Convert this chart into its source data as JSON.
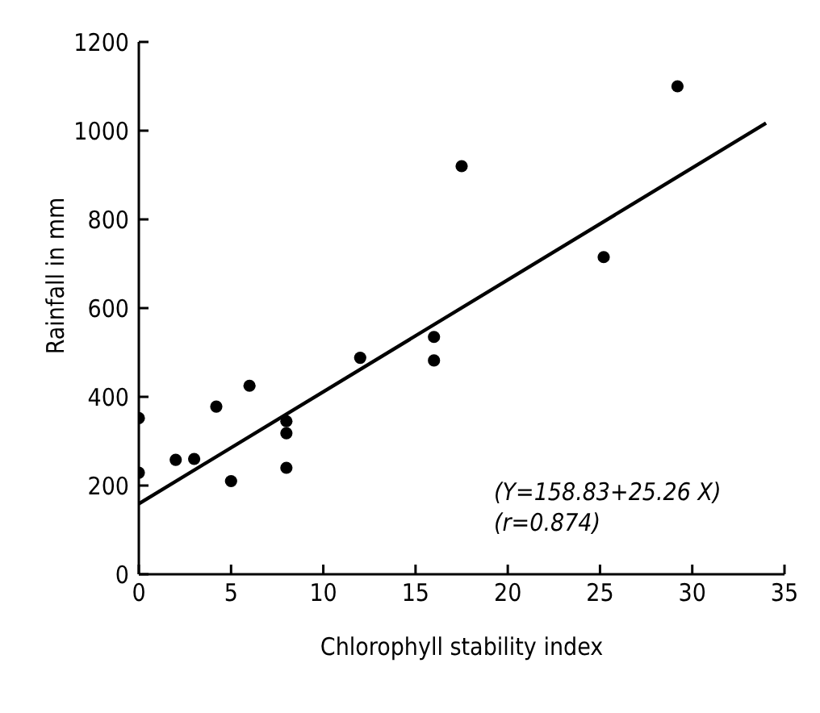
{
  "chart_data": {
    "type": "scatter",
    "xlabel": "Chlorophyll stability index",
    "ylabel": "Rainfall in mm",
    "xlim": [
      0,
      35
    ],
    "xticks": [
      0,
      5,
      10,
      15,
      20,
      25,
      30,
      35
    ],
    "ylim": [
      0,
      1200
    ],
    "yticks": [
      0,
      200,
      400,
      600,
      800,
      1000,
      1200
    ],
    "grid": false,
    "legend": false,
    "marker": "circle",
    "annotations": [
      "(Y=158.83+25.26 X)",
      "(r=0.874)"
    ],
    "series": [
      {
        "color": "#000000",
        "x": [
          0,
          0,
          2,
          3,
          4.2,
          5,
          6,
          8,
          8,
          8,
          12,
          16,
          16,
          17.5,
          25.2,
          29.2
        ],
        "values": [
          352,
          229,
          258,
          260,
          378,
          210,
          425,
          345,
          318,
          240,
          488,
          535,
          482,
          920,
          715,
          1100
        ]
      },
      {
        "type": "line",
        "color": "#000000",
        "line_style": "solid",
        "marker": "none",
        "x": [
          0,
          34
        ],
        "values": [
          159,
          1017
        ]
      }
    ]
  }
}
